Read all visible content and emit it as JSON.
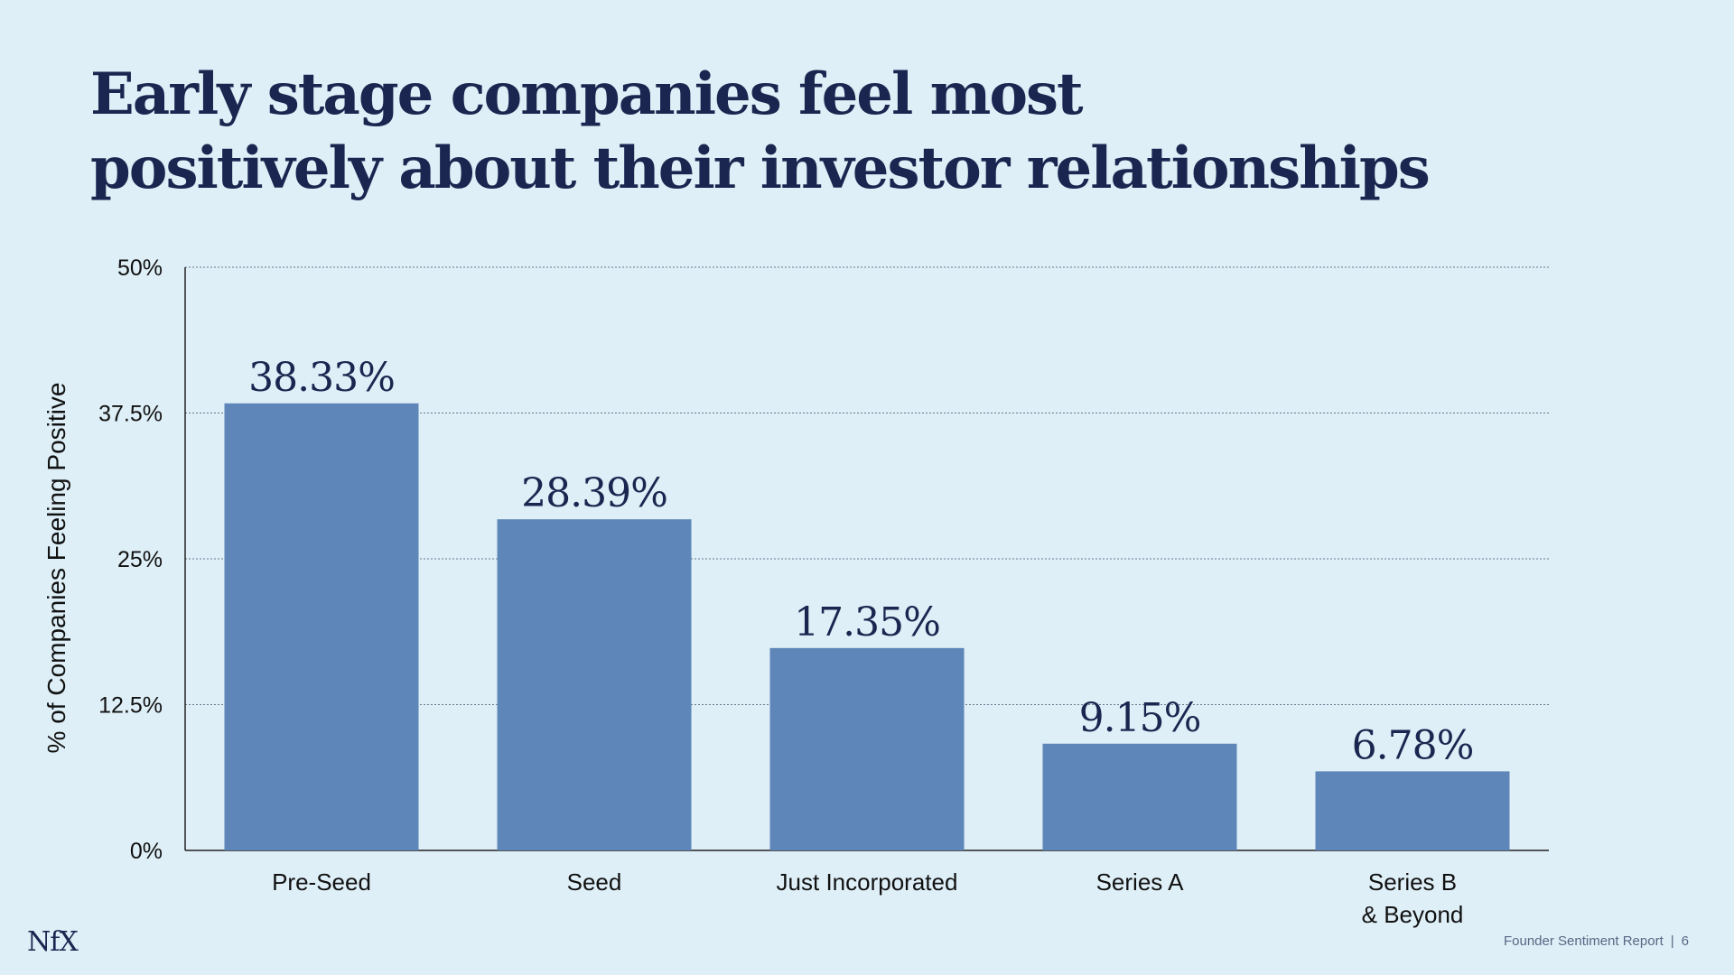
{
  "title_lines": [
    "Early stage companies feel most",
    "positively about their investor relationships"
  ],
  "chart_data": {
    "type": "bar",
    "categories": [
      [
        "Pre-Seed"
      ],
      [
        "Seed"
      ],
      [
        "Just Incorporated"
      ],
      [
        "Series A"
      ],
      [
        "Series B",
        "& Beyond"
      ]
    ],
    "values": [
      38.33,
      28.39,
      17.35,
      9.15,
      6.78
    ],
    "data_labels": [
      "38.33%",
      "28.39%",
      "17.35%",
      "9.15%",
      "6.78%"
    ],
    "ylabel": "% of Companies Feeling Positive",
    "ylim": [
      0,
      50
    ],
    "yticks": [
      0,
      12.5,
      25,
      37.5,
      50
    ],
    "ytick_labels": [
      "0%",
      "12.5%",
      "25%",
      "37.5%",
      "50%"
    ],
    "grid": true,
    "bar_color": "#5e86b8",
    "text_color": "#1b2650"
  },
  "footer": {
    "logo": "NfX",
    "report": "Founder Sentiment Report",
    "separator": "|",
    "page": "6"
  }
}
